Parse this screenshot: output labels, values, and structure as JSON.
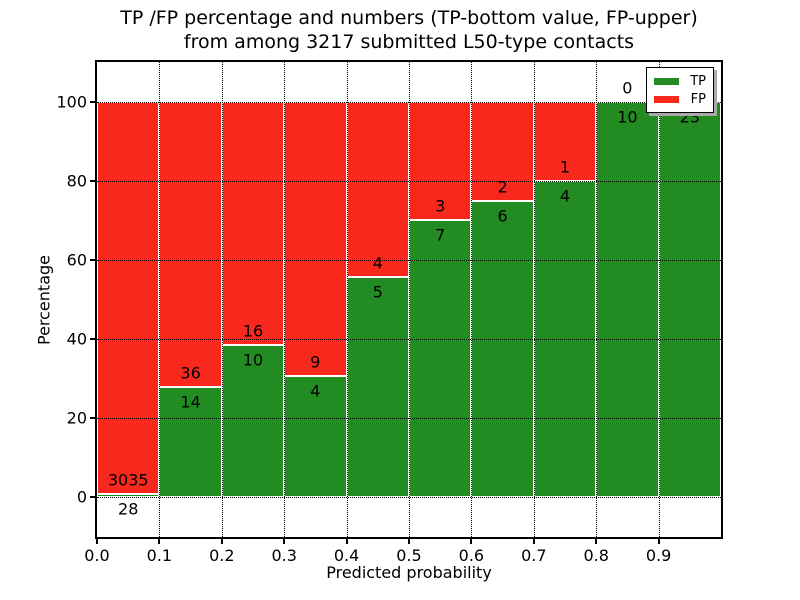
{
  "title": {
    "line1": "TP /FP percentage and numbers (TP-bottom value, FP-upper)",
    "line2": "from among 3217 submitted L50-type contacts"
  },
  "x_axis": {
    "label": "Predicted probability",
    "ticks": [
      "0.0",
      "0.1",
      "0.2",
      "0.3",
      "0.4",
      "0.5",
      "0.6",
      "0.7",
      "0.8",
      "0.9"
    ],
    "tick_values": [
      0.0,
      0.1,
      0.2,
      0.3,
      0.4,
      0.5,
      0.6,
      0.7,
      0.8,
      0.9
    ],
    "range": [
      0.0,
      1.0
    ]
  },
  "y_axis": {
    "label": "Percentage",
    "ticks": [
      "0",
      "20",
      "40",
      "60",
      "80",
      "100"
    ],
    "tick_values": [
      0,
      20,
      40,
      60,
      80,
      100
    ],
    "range": [
      -10,
      110
    ]
  },
  "legend": {
    "position": "upper-right",
    "items": [
      {
        "label": "TP",
        "color": "#228b22"
      },
      {
        "label": "FP",
        "color": "#f8281c"
      }
    ]
  },
  "style": {
    "tp_color": "#228b22",
    "fp_color": "#f8281c",
    "bar_edge_color": "#ffffff",
    "grid_color": "#000000",
    "axis_color": "#000000",
    "annotation_color": "#000000",
    "legend_shadow_color": "#a9a9a9",
    "background": "#ffffff"
  },
  "chart_data": {
    "type": "bar",
    "stacked": true,
    "title": "TP /FP percentage and numbers (TP-bottom value, FP-upper) from among 3217 submitted L50-type contacts",
    "xlabel": "Predicted probability",
    "ylabel": "Percentage",
    "total_contacts": 3217,
    "bin_left_edges": [
      0.0,
      0.1,
      0.2,
      0.3,
      0.4,
      0.5,
      0.6,
      0.7,
      0.8,
      0.9
    ],
    "bin_width": 0.1,
    "annotation_note": "TP count shown below segment boundary, FP count shown above it",
    "series": [
      {
        "name": "TP",
        "color": "#228b22",
        "counts": [
          28,
          14,
          10,
          4,
          5,
          7,
          6,
          4,
          10,
          23
        ],
        "percent": [
          0.91,
          28.0,
          38.46,
          30.77,
          55.56,
          70.0,
          75.0,
          80.0,
          100.0,
          100.0
        ]
      },
      {
        "name": "FP",
        "color": "#f8281c",
        "counts": [
          3035,
          36,
          16,
          9,
          4,
          3,
          2,
          1,
          0,
          0
        ],
        "percent": [
          99.09,
          72.0,
          61.54,
          69.23,
          44.44,
          30.0,
          25.0,
          20.0,
          0.0,
          0.0
        ]
      }
    ],
    "grid": {
      "style": "dotted",
      "on": true,
      "y_values": [
        0,
        20,
        40,
        60,
        80,
        100
      ],
      "x_values": [
        0.1,
        0.2,
        0.3,
        0.4,
        0.5,
        0.6,
        0.7,
        0.8,
        0.9
      ]
    },
    "ylim": [
      -10,
      110
    ],
    "xlim": [
      0.0,
      1.0
    ],
    "legend_position": "upper-right"
  }
}
